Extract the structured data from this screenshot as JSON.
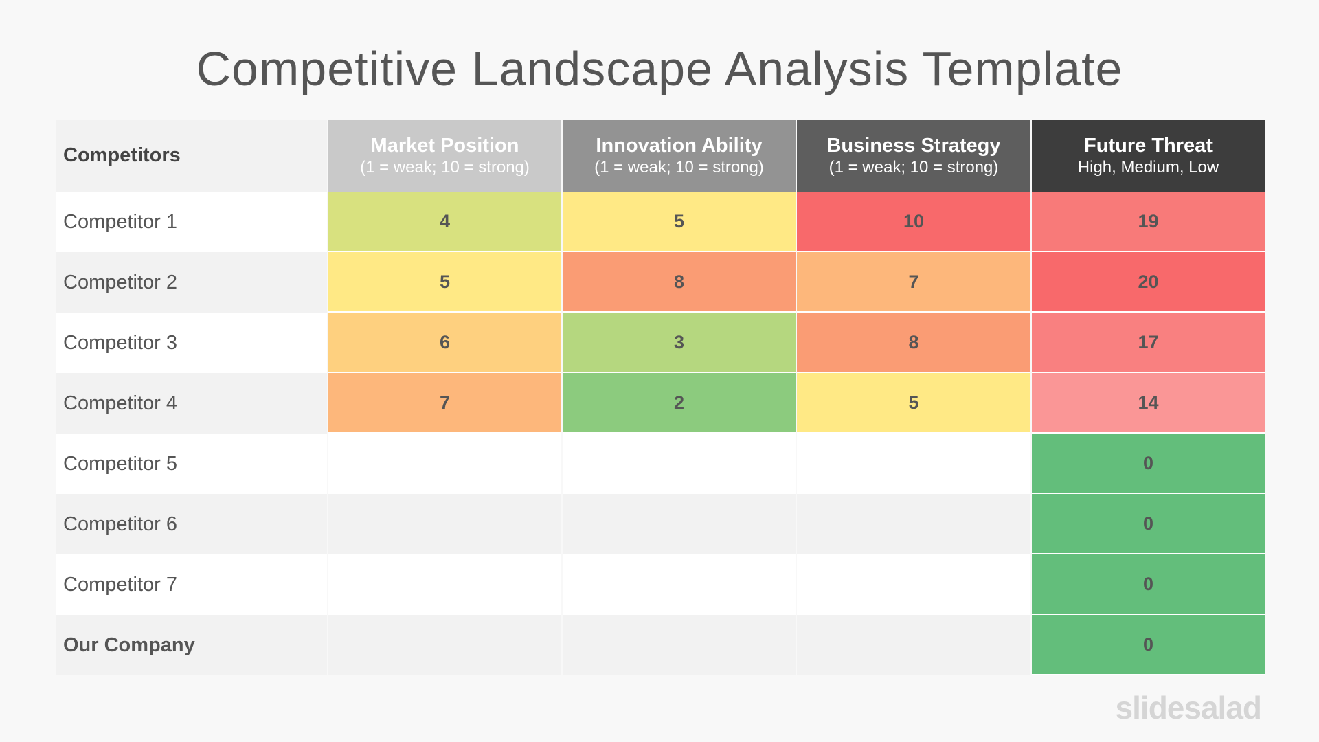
{
  "title": "Competitive Landscape Analysis Template",
  "table": {
    "corner_label": "Competitors",
    "headers": [
      {
        "title": "Market Position",
        "subtitle": "(1 = weak; 10 = strong)",
        "bg": "#c9c9c9"
      },
      {
        "title": "Innovation Ability",
        "subtitle": "(1 = weak; 10 = strong)",
        "bg": "#939393"
      },
      {
        "title": "Business Strategy",
        "subtitle": "(1 = weak; 10 = strong)",
        "bg": "#5e5e5e"
      },
      {
        "title": "Future Threat",
        "subtitle": "High, Medium, Low",
        "bg": "#3d3d3d"
      }
    ],
    "rows": [
      {
        "name": "Competitor 1",
        "bold": false,
        "values": [
          "4",
          "5",
          "10",
          "19"
        ],
        "colors": [
          "#d8e17f",
          "#ffe985",
          "#f8696b",
          "#f87a79"
        ]
      },
      {
        "name": "Competitor 2",
        "bold": false,
        "values": [
          "5",
          "8",
          "7",
          "20"
        ],
        "colors": [
          "#ffe985",
          "#fa9c74",
          "#fdb77b",
          "#f8696b"
        ]
      },
      {
        "name": "Competitor 3",
        "bold": false,
        "values": [
          "6",
          "3",
          "8",
          "17"
        ],
        "colors": [
          "#fed07f",
          "#b5d77f",
          "#fa9c74",
          "#f98080"
        ]
      },
      {
        "name": "Competitor 4",
        "bold": false,
        "values": [
          "7",
          "2",
          "5",
          "14"
        ],
        "colors": [
          "#fdb77b",
          "#8ccb7e",
          "#ffe985",
          "#fa9696"
        ]
      },
      {
        "name": "Competitor 5",
        "bold": false,
        "values": [
          "",
          "",
          "",
          "0"
        ],
        "colors": [
          "",
          "",
          "",
          "#63be7b"
        ]
      },
      {
        "name": "Competitor 6",
        "bold": false,
        "values": [
          "",
          "",
          "",
          "0"
        ],
        "colors": [
          "",
          "",
          "",
          "#63be7b"
        ]
      },
      {
        "name": "Competitor 7",
        "bold": false,
        "values": [
          "",
          "",
          "",
          "0"
        ],
        "colors": [
          "",
          "",
          "",
          "#63be7b"
        ]
      },
      {
        "name": "Our Company",
        "bold": true,
        "values": [
          "",
          "",
          "",
          "0"
        ],
        "colors": [
          "",
          "",
          "",
          "#63be7b"
        ]
      }
    ]
  },
  "logo": "slidesalad"
}
